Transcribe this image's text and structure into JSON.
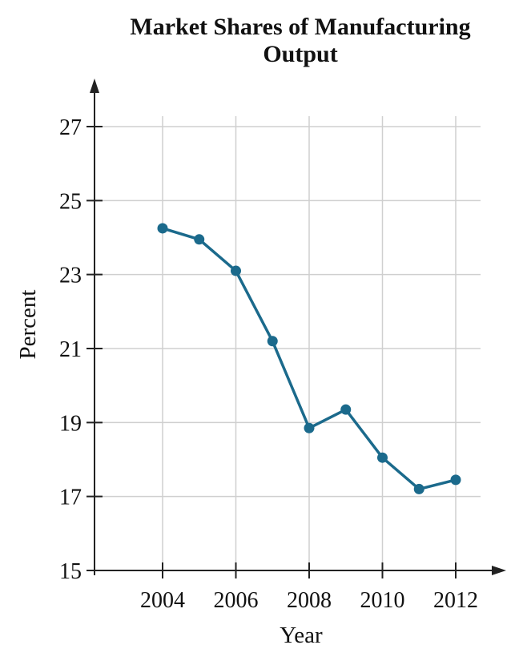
{
  "chart_data": {
    "type": "line",
    "title": "Market Shares of Manufacturing Output",
    "title_lines": [
      "Market Shares of Manufacturing",
      "Output"
    ],
    "xlabel": "Year",
    "ylabel": "Percent",
    "x_tick_labels": [
      "2004",
      "2006",
      "2008",
      "2010",
      "2012"
    ],
    "y_tick_labels": [
      "15",
      "17",
      "19",
      "21",
      "23",
      "25",
      "27"
    ],
    "xlim": [
      2002,
      2013
    ],
    "ylim": [
      15,
      27
    ],
    "grid": true,
    "series": [
      {
        "color": "#1b6a8c",
        "x": [
          2004,
          2005,
          2006,
          2007,
          2008,
          2009,
          2010,
          2011,
          2012
        ],
        "y": [
          24.25,
          23.95,
          23.1,
          21.2,
          18.85,
          19.35,
          18.05,
          17.2,
          17.45
        ]
      }
    ]
  }
}
